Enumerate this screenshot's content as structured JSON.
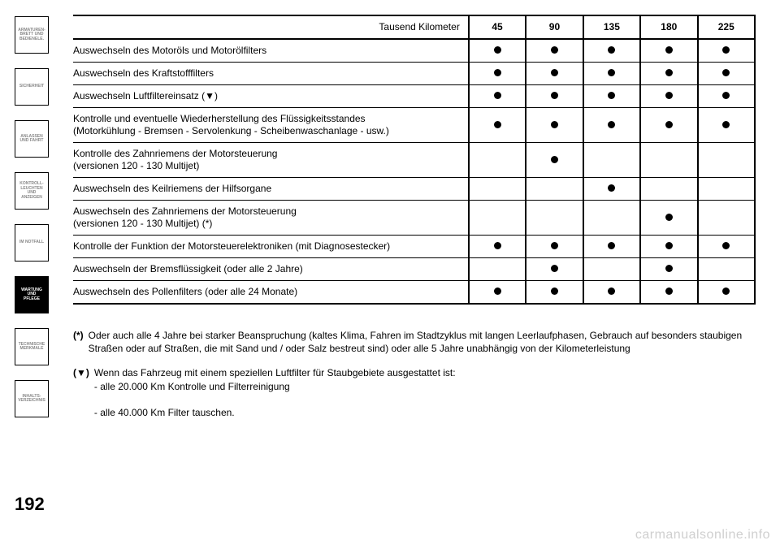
{
  "sidebar": {
    "tabs": [
      {
        "label": "ARMATUREN-\nBRETT UND\nBEDIENELE."
      },
      {
        "label": "SICHERHEIT"
      },
      {
        "label": "ANLASSEN\nUND FAHRT"
      },
      {
        "label": "KONTROLL-\nLEUCHTEN UND\nANZEIGEN"
      },
      {
        "label": "IM NOTFALL"
      },
      {
        "label": "WARTUNG UND\nPFLEGE"
      },
      {
        "label": "TECHNISCHE\nMERKMALE"
      },
      {
        "label": "INHALTS-\nVERZEICHNIS"
      }
    ],
    "active_index": 5
  },
  "page_number": "192",
  "watermark": "carmanualsonline.info",
  "table": {
    "header_label": "Tausend Kilometer",
    "columns": [
      "45",
      "90",
      "135",
      "180",
      "225"
    ],
    "rows": [
      {
        "label": "Auswechseln des Motoröls und Motorölfilters",
        "marks": [
          true,
          true,
          true,
          true,
          true
        ]
      },
      {
        "label": "Auswechseln des Kraftstofffilters",
        "marks": [
          true,
          true,
          true,
          true,
          true
        ]
      },
      {
        "label": "Auswechseln Luftfiltereinsatz (▼)",
        "marks": [
          true,
          true,
          true,
          true,
          true
        ]
      },
      {
        "label": "Kontrolle und eventuelle Wiederherstellung des Flüssigkeitsstandes\n(Motorkühlung - Bremsen - Servolenkung - Scheibenwaschanlage - usw.)",
        "marks": [
          true,
          true,
          true,
          true,
          true
        ]
      },
      {
        "label": "Kontrolle des Zahnriemens der Motorsteuerung\n(versionen 120 - 130 Multijet)",
        "marks": [
          false,
          true,
          false,
          false,
          false
        ]
      },
      {
        "label": "Auswechseln des Keilriemens der Hilfsorgane",
        "marks": [
          false,
          false,
          true,
          false,
          false
        ]
      },
      {
        "label": "Auswechseln des Zahnriemens der Motorsteuerung\n(versionen 120 - 130 Multijet) (*)",
        "marks": [
          false,
          false,
          false,
          true,
          false
        ]
      },
      {
        "label": "Kontrolle der Funktion der Motorsteuerelektroniken (mit Diagnosestecker)",
        "marks": [
          true,
          true,
          true,
          true,
          true
        ]
      },
      {
        "label": "Auswechseln der Bremsflüssigkeit (oder alle 2 Jahre)",
        "marks": [
          false,
          true,
          false,
          true,
          false
        ]
      },
      {
        "label": "Auswechseln des Pollenfilters (oder alle 24 Monate)",
        "marks": [
          true,
          true,
          true,
          true,
          true
        ]
      }
    ]
  },
  "footnotes": [
    {
      "mark": "(*)",
      "text": "Oder auch alle 4 Jahre bei starker Beanspruchung (kaltes Klima, Fahren im Stadtzyklus mit langen Leerlaufphasen, Gebrauch auf besonders staubigen Straßen oder auf Straßen, die mit Sand und / oder Salz bestreut sind) oder alle 5 Jahre unabhängig von der Kilometerleistung"
    },
    {
      "mark": "(▼)",
      "text": "Wenn das Fahrzeug mit einem speziellen Luftfilter für Staubgebiete ausgestattet ist:",
      "sub": [
        "- alle 20.000 Km Kontrolle und Filterreinigung",
        "- alle 40.000 Km Filter tauschen."
      ]
    }
  ]
}
